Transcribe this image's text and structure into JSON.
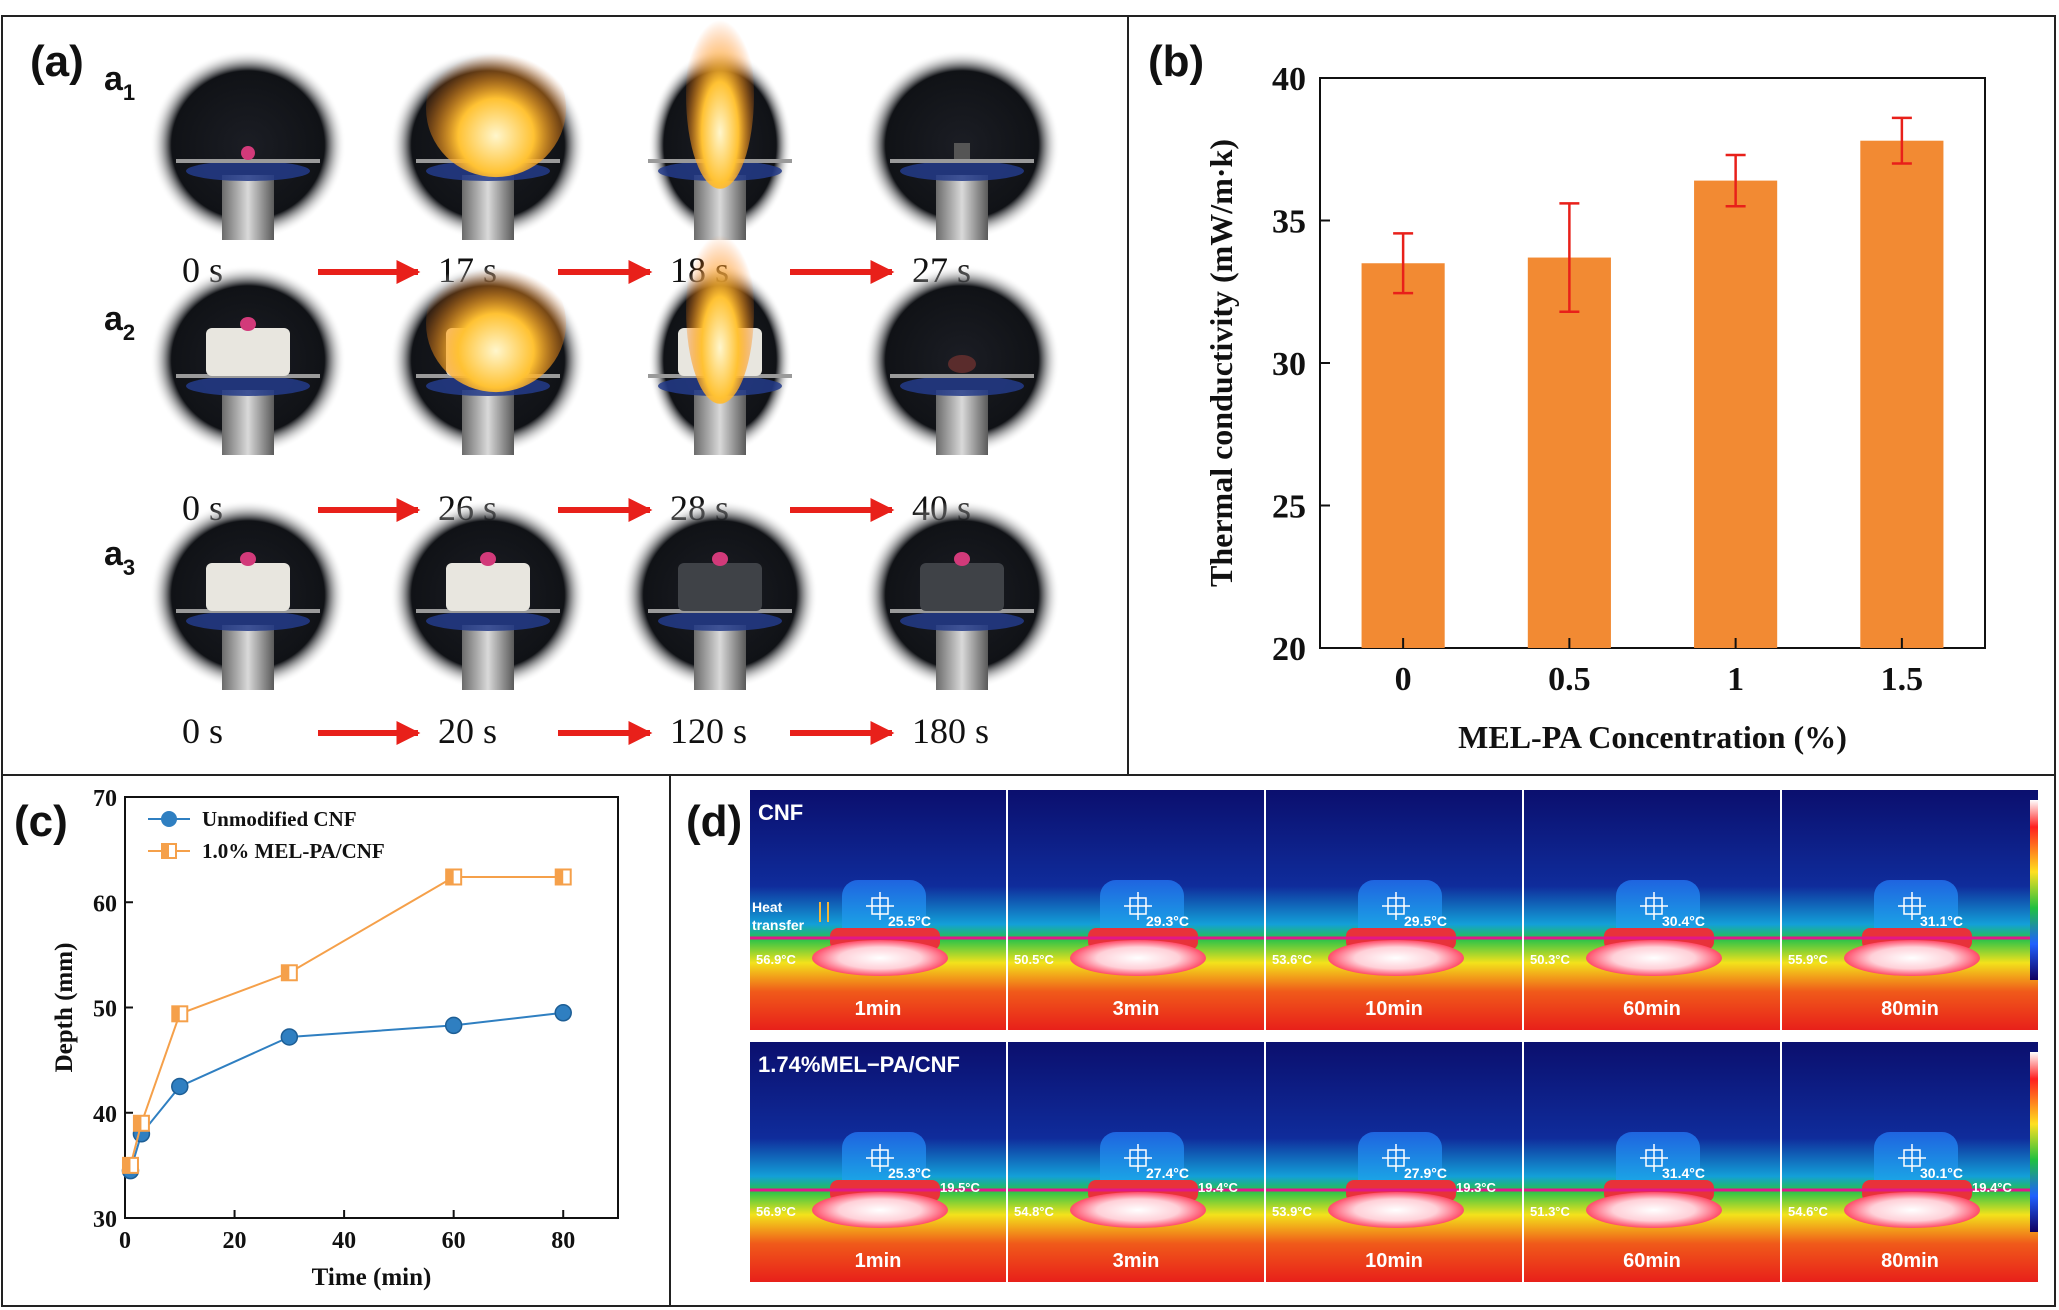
{
  "panels": {
    "a": {
      "label": "(a)",
      "rows": [
        {
          "label": "a",
          "sub": "1",
          "times": [
            "0 s",
            "17 s",
            "18 s",
            "27 s"
          ]
        },
        {
          "label": "a",
          "sub": "2",
          "times": [
            "0 s",
            "26 s",
            "28 s",
            "40 s"
          ]
        },
        {
          "label": "a",
          "sub": "3",
          "times": [
            "0 s",
            "20 s",
            "120 s",
            "180 s"
          ]
        }
      ]
    },
    "b": {
      "label": "(b)"
    },
    "c": {
      "label": "(c)"
    },
    "d": {
      "label": "(d)",
      "rows": [
        {
          "name": "CNF",
          "heat_label_1": "Heat",
          "heat_label_2": "transfer",
          "frames": [
            {
              "time": "1min",
              "top_temp": "25.5°C",
              "bottom_temp": "56.9°C",
              "side_temp": ""
            },
            {
              "time": "3min",
              "top_temp": "29.3°C",
              "bottom_temp": "50.5°C",
              "side_temp": ""
            },
            {
              "time": "10min",
              "top_temp": "29.5°C",
              "bottom_temp": "53.6°C",
              "side_temp": ""
            },
            {
              "time": "60min",
              "top_temp": "30.4°C",
              "bottom_temp": "50.3°C",
              "side_temp": ""
            },
            {
              "time": "80min",
              "top_temp": "31.1°C",
              "bottom_temp": "55.9°C",
              "side_temp": ""
            }
          ]
        },
        {
          "name": "1.74%MEL−PA/CNF",
          "heat_label_1": "",
          "heat_label_2": "",
          "frames": [
            {
              "time": "1min",
              "top_temp": "25.3°C",
              "bottom_temp": "56.9°C",
              "side_temp": "19.5°C"
            },
            {
              "time": "3min",
              "top_temp": "27.4°C",
              "bottom_temp": "54.8°C",
              "side_temp": "19.4°C"
            },
            {
              "time": "10min",
              "top_temp": "27.9°C",
              "bottom_temp": "53.9°C",
              "side_temp": "19.3°C"
            },
            {
              "time": "60min",
              "top_temp": "31.4°C",
              "bottom_temp": "51.3°C",
              "side_temp": ""
            },
            {
              "time": "80min",
              "top_temp": "30.1°C",
              "bottom_temp": "54.6°C",
              "side_temp": "19.4°C"
            }
          ]
        }
      ]
    }
  },
  "colors": {
    "bar": "#f28a33",
    "error": "#e8201a",
    "arrow": "#e8201a",
    "series1": "#2f7fc1",
    "series2": "#f5a04a",
    "magenta": "#e0188a"
  },
  "chart_data": [
    {
      "type": "bar",
      "title": "",
      "xlabel": "MEL-PA Concentration (%)",
      "ylabel": "Thermal conductivity (mW/m·k)",
      "categories": [
        "0",
        "0.5",
        "1",
        "1.5"
      ],
      "values": [
        33.5,
        33.7,
        36.4,
        37.8
      ],
      "errors": [
        1.05,
        1.9,
        0.9,
        0.8
      ],
      "ylim": [
        20,
        40
      ],
      "yticks": [
        "20",
        "25",
        "30",
        "35",
        "40"
      ]
    },
    {
      "type": "line",
      "title": "",
      "xlabel": "Time (min)",
      "ylabel": "Depth (mm)",
      "xlim": [
        0,
        90
      ],
      "ylim": [
        30,
        70
      ],
      "xticks": [
        "0",
        "20",
        "40",
        "60",
        "80"
      ],
      "yticks": [
        "30",
        "40",
        "50",
        "60",
        "70"
      ],
      "legend_position": "top-left",
      "series": [
        {
          "name": "Unmodified CNF",
          "x": [
            1,
            3,
            10,
            30,
            60,
            80
          ],
          "y": [
            34.5,
            38.0,
            42.5,
            47.2,
            48.3,
            49.5
          ]
        },
        {
          "name": "1.0% MEL-PA/CNF",
          "x": [
            1,
            3,
            10,
            30,
            60,
            80
          ],
          "y": [
            35.0,
            39.0,
            49.4,
            53.3,
            62.4,
            62.4
          ]
        }
      ]
    }
  ]
}
